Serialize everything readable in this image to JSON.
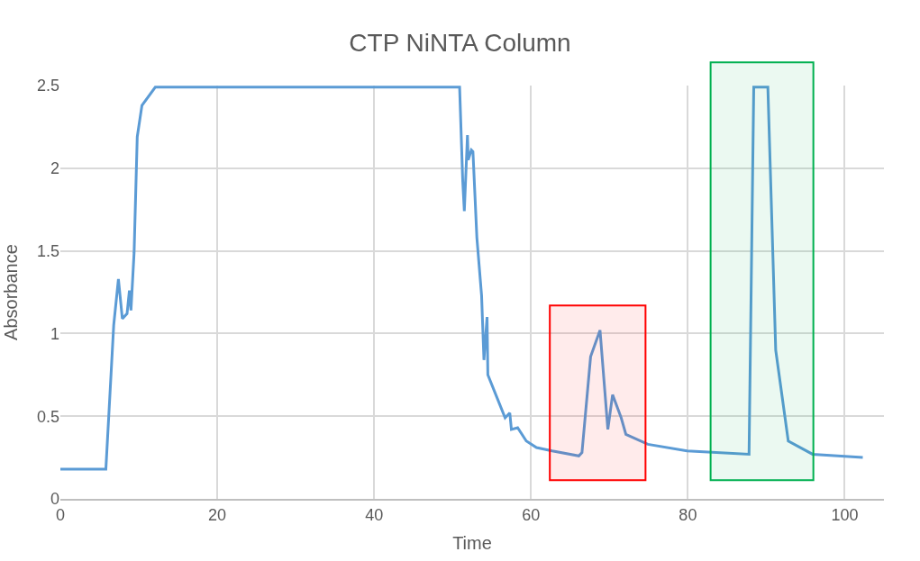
{
  "chart_data": {
    "type": "line",
    "title": "CTP NiNTA Column",
    "xlabel": "Time",
    "ylabel": "Absorbance",
    "x": [
      0,
      5.8,
      6.8,
      7.4,
      7.9,
      8.5,
      8.8,
      9.0,
      9.4,
      9.8,
      10.4,
      12.1,
      50.9,
      51.3,
      51.5,
      51.9,
      52.0,
      52.4,
      52.6,
      53.1,
      53.7,
      54.0,
      54.4,
      54.5,
      55.6,
      56.7,
      57.3,
      57.5,
      58.3,
      59.4,
      60.7,
      62.7,
      66.1,
      66.5,
      67.6,
      68.8,
      69.8,
      70.4,
      71.5,
      72.1,
      74.9,
      79.9,
      87.8,
      88.4,
      90.2,
      91.2,
      92.8,
      95.9,
      102.3
    ],
    "series": [
      {
        "color": "#5b9bd5",
        "values": [
          0.18,
          0.18,
          1.05,
          1.33,
          1.09,
          1.12,
          1.26,
          1.14,
          1.49,
          2.19,
          2.38,
          2.49,
          2.49,
          1.92,
          1.74,
          2.2,
          2.05,
          2.11,
          2.1,
          1.58,
          1.23,
          0.84,
          1.1,
          0.75,
          0.62,
          0.49,
          0.52,
          0.42,
          0.43,
          0.35,
          0.31,
          0.29,
          0.26,
          0.28,
          0.86,
          1.02,
          0.42,
          0.63,
          0.49,
          0.39,
          0.33,
          0.29,
          0.27,
          2.49,
          2.49,
          0.9,
          0.35,
          0.27,
          0.25
        ]
      }
    ],
    "xlim": [
      0,
      105
    ],
    "xticks": [
      0,
      20,
      40,
      60,
      80,
      100
    ],
    "ylim": [
      0,
      2.5
    ],
    "yticks": [
      0,
      0.5,
      1,
      1.5,
      2,
      2.5
    ],
    "bands": [
      {
        "axis": "x",
        "from": 62.4,
        "to": 74.6,
        "color": "#ff0000"
      },
      {
        "axis": "x",
        "from": 82.9,
        "to": 96.0,
        "color": "#00b050"
      }
    ],
    "grid": true,
    "marker": "none",
    "line_style": "solid"
  }
}
